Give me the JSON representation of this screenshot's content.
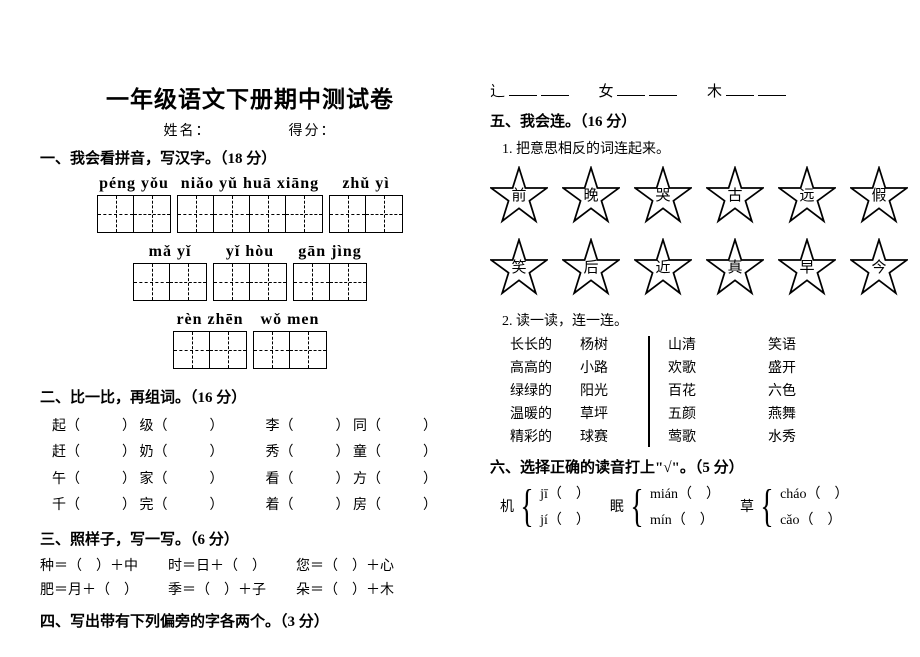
{
  "title": "一年级语文下册期中测试卷",
  "meta": {
    "name_label": "姓名：",
    "score_label": "得分："
  },
  "s1": {
    "heading": "一、我会看拼音，写汉字。（18 分）",
    "items": [
      {
        "pinyin": "péng yǒu",
        "cells": 2
      },
      {
        "pinyin": "niǎo yǔ huā xiāng",
        "cells": 4
      },
      {
        "pinyin": "zhǔ yì",
        "cells": 2
      },
      {
        "pinyin": "mǎ yǐ",
        "cells": 2
      },
      {
        "pinyin": "yǐ hòu",
        "cells": 2
      },
      {
        "pinyin": "gān jìng",
        "cells": 2
      },
      {
        "pinyin": "rèn zhēn",
        "cells": 2
      },
      {
        "pinyin": "wǒ men",
        "cells": 2
      }
    ]
  },
  "s2": {
    "heading": "二、比一比，再组词。（16 分）",
    "rows": [
      [
        "起（",
        "）  级（",
        "）",
        "李（",
        "）  同（",
        "）"
      ],
      [
        "赶（",
        "）  奶（",
        "）",
        "秀（",
        "）  童（",
        "）"
      ],
      [
        "午（",
        "）  家（",
        "）",
        "看（",
        "）  方（",
        "）"
      ],
      [
        "千（",
        "）  完（",
        "）",
        "着（",
        "）  房（",
        "）"
      ]
    ]
  },
  "s3": {
    "heading": "三、照样子，写一写。（6 分）",
    "rows": [
      [
        "种＝（　）＋中",
        "时＝日＋（　）",
        "您＝（　）＋心"
      ],
      [
        "肥＝月＋（　）",
        "季＝（　）＋子",
        "朵＝（　）＋木"
      ]
    ]
  },
  "s4": {
    "heading": "四、写出带有下列偏旁的字各两个。（3 分）"
  },
  "radicals": [
    "辶",
    "女",
    "木"
  ],
  "s5": {
    "heading": "五、我会连。（16 分）",
    "sub1": "1. 把意思相反的词连起来。",
    "top": [
      "前",
      "晚",
      "哭",
      "古",
      "远",
      "假"
    ],
    "bottom": [
      "笑",
      "后",
      "近",
      "真",
      "早",
      "今"
    ],
    "sub2": "2. 读一读，连一连。",
    "m2": {
      "a": [
        "长长的",
        "高高的",
        "绿绿的",
        "温暖的",
        "精彩的"
      ],
      "b": [
        "杨树",
        "小路",
        "阳光",
        "草坪",
        "球赛"
      ],
      "c": [
        "山清",
        "欢歌",
        "百花",
        "五颜",
        "莺歌"
      ],
      "d": [
        "笑语",
        "盛开",
        "六色",
        "燕舞",
        "水秀"
      ]
    }
  },
  "s6": {
    "heading": "六、选择正确的读音打上\"√\"。（5 分）",
    "items": [
      {
        "char": "机",
        "opts": [
          "jī（　）",
          "jí（　）"
        ]
      },
      {
        "char": "眠",
        "opts": [
          "mián（　）",
          "mín（　）"
        ]
      },
      {
        "char": "草",
        "opts": [
          "cháo（　）",
          "cǎo（　）"
        ]
      }
    ]
  }
}
